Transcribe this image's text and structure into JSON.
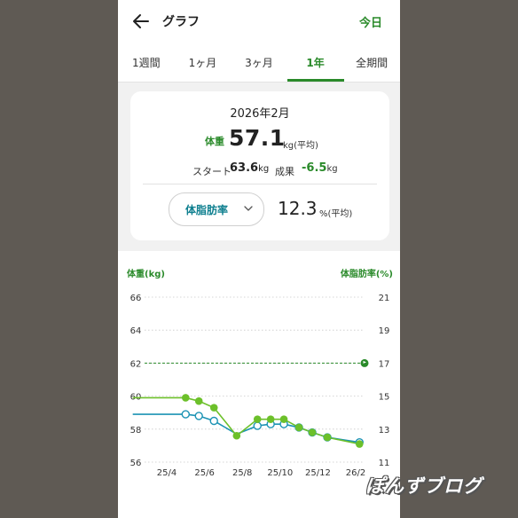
{
  "header": {
    "title": "グラフ",
    "today_label": "今日",
    "back_icon": "arrow-left-icon"
  },
  "tabs": [
    "1週間",
    "1ヶ月",
    "3ヶ月",
    "1年",
    "全期間"
  ],
  "active_tab": "1年",
  "summary": {
    "period": "2026年2月",
    "weight_label": "体重",
    "weight_value": "57.1",
    "weight_unit": "kg(平均)",
    "start_label": "スタート",
    "start_value": "63.6",
    "start_unit": "kg",
    "result_label": "成果",
    "result_value": "-6.5",
    "result_unit": "kg",
    "secondary_metric": "体脂肪率",
    "secondary_value": "12.3",
    "secondary_unit": "%(平均)"
  },
  "colors": {
    "accent": "#2a8a2a",
    "weight_series": "#6cc02a",
    "fat_series": "#1c93b4",
    "goal_line": "#2a8a2a"
  },
  "chart_data": {
    "type": "line",
    "ylabel_left": "体重(kg)",
    "ylabel_right": "体脂肪率(%)",
    "y_left_ticks": [
      56,
      58,
      60,
      62,
      64,
      66
    ],
    "y_right_ticks": [
      11,
      13,
      15,
      17,
      19,
      21
    ],
    "ylim_left": [
      56,
      66
    ],
    "ylim_right": [
      11,
      21
    ],
    "x_ticks": [
      "25/4",
      "25/6",
      "25/8",
      "25/10",
      "25/12",
      "26/2"
    ],
    "x_tick_values": [
      1,
      3,
      5,
      7,
      9,
      11
    ],
    "goal": {
      "weight": 62,
      "fat": 17
    },
    "series": [
      {
        "name": "体重",
        "axis": "left",
        "x": [
          -0.8,
          2.0,
          2.7,
          3.5,
          4.7,
          5.8,
          6.5,
          7.2,
          8.0,
          8.7,
          9.5,
          11.2
        ],
        "values": [
          59.9,
          59.9,
          59.7,
          59.3,
          57.6,
          58.6,
          58.6,
          58.6,
          58.1,
          57.8,
          57.5,
          57.1
        ],
        "markers": [
          false,
          true,
          true,
          true,
          true,
          true,
          true,
          true,
          true,
          true,
          true,
          true
        ]
      },
      {
        "name": "体脂肪率",
        "axis": "right",
        "x": [
          -0.8,
          2.0,
          2.7,
          3.5,
          4.7,
          5.8,
          6.5,
          7.2,
          8.0,
          8.7,
          9.5,
          11.2
        ],
        "values": [
          13.9,
          13.9,
          13.8,
          13.5,
          12.7,
          13.2,
          13.3,
          13.3,
          13.1,
          12.8,
          12.5,
          12.2
        ],
        "markers": [
          false,
          true,
          true,
          true,
          false,
          true,
          true,
          true,
          true,
          true,
          true,
          true
        ]
      }
    ]
  },
  "watermark": "ぽんずブログ"
}
